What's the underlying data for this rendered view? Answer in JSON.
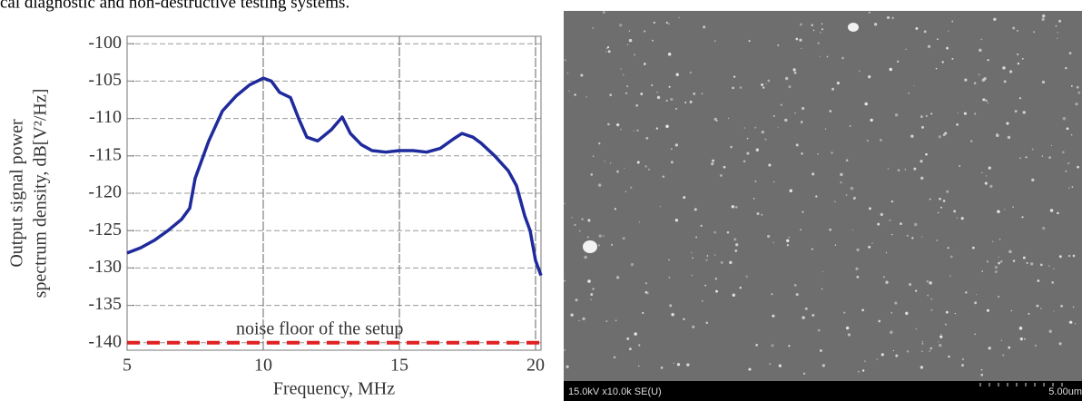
{
  "text": "cal diagnostic and non-destructive testing systems.",
  "chart_data": {
    "type": "line",
    "ylabel": [
      "Output signal power",
      "spectrum density, dB[V²/Hz]"
    ],
    "xlabel": "Frequency, MHz",
    "annotation": "noise floor of the setup",
    "xlim": [
      5,
      20.2
    ],
    "ylim": [
      -141,
      -99
    ],
    "xticks": [
      5,
      10,
      15,
      20
    ],
    "yticks": [
      -140,
      -135,
      -130,
      -125,
      -120,
      -115,
      -110,
      -105,
      -100
    ],
    "grid": true,
    "series": [
      {
        "color": "#1f2a9c",
        "dashed": false,
        "x": [
          5,
          5.5,
          6,
          6.5,
          7,
          7.3,
          7.5,
          8,
          8.5,
          9,
          9.5,
          10,
          10.3,
          10.6,
          11,
          11.3,
          11.6,
          12,
          12.5,
          12.9,
          13.2,
          13.6,
          14,
          14.5,
          15,
          15.5,
          16,
          16.5,
          17,
          17.3,
          17.7,
          18,
          18.5,
          19,
          19.3,
          19.6,
          19.8,
          20,
          20.2
        ],
        "values": [
          -128,
          -127.3,
          -126.3,
          -125,
          -123.5,
          -122,
          -118,
          -113,
          -109,
          -107,
          -105.5,
          -104.6,
          -105,
          -106.5,
          -107.2,
          -110,
          -112.5,
          -113,
          -111.5,
          -109.8,
          -112,
          -113.5,
          -114.3,
          -114.5,
          -114.3,
          -114.3,
          -114.5,
          -114,
          -112.7,
          -112,
          -112.5,
          -113.3,
          -115,
          -117,
          -119,
          -123,
          -125,
          -129,
          -131
        ]
      },
      {
        "color": "#e02020",
        "dashed": true,
        "x": [
          5,
          20.2
        ],
        "values": [
          -140,
          -140
        ]
      }
    ]
  },
  "image": {
    "caption": "15.0kV x10.0k SE(U)",
    "scale": "5.00um"
  }
}
